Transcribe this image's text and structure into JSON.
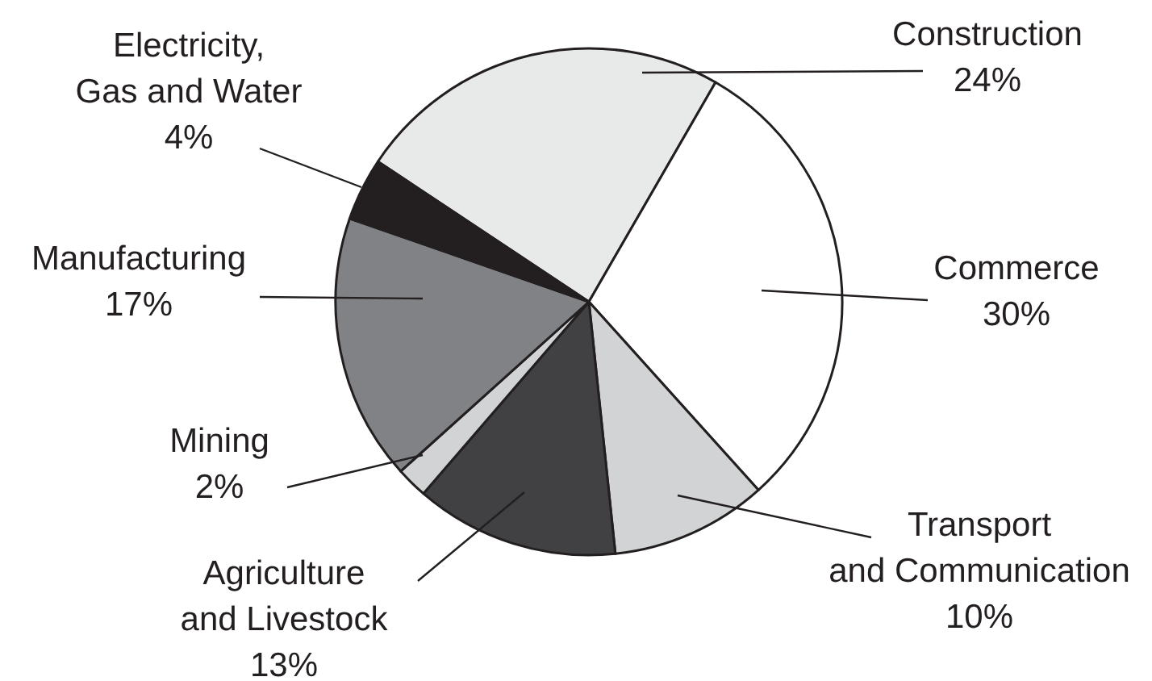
{
  "chart_data": {
    "type": "pie",
    "categories": [
      "Construction",
      "Commerce",
      "Transport\nand Communication",
      "Agriculture\nand Livestock",
      "Mining",
      "Manufacturing",
      "Electricity,\nGas and Water"
    ],
    "values": [
      24,
      30,
      10,
      13,
      2,
      17,
      4
    ],
    "colors": [
      "#e8e9e9",
      "#ffffff",
      "#d1d3d4",
      "#414042",
      "#d1d3d4",
      "#808285",
      "#231f20"
    ],
    "value_labels": [
      "24%",
      "30%",
      "10%",
      "13%",
      "2%",
      "17%",
      "4%"
    ]
  }
}
